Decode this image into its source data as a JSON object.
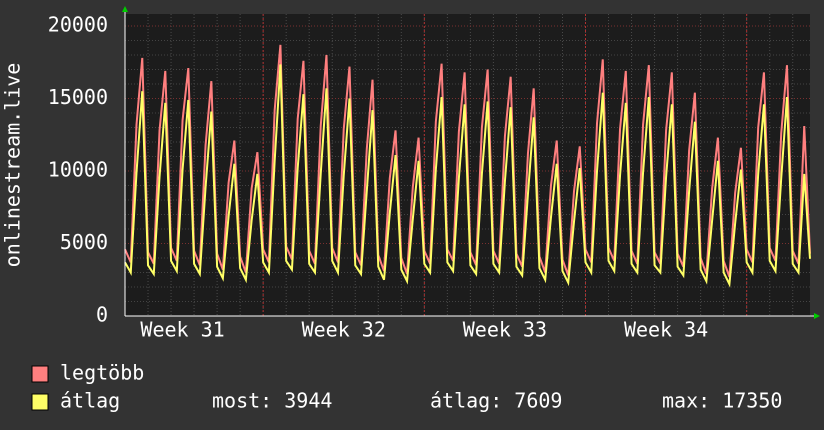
{
  "chart_data": {
    "type": "line",
    "y_label": "onlinestream.live",
    "categories": [
      null,
      null,
      null,
      null,
      null,
      null,
      null,
      null,
      null,
      null,
      "Week 31",
      null,
      null,
      null,
      null,
      null,
      null,
      null,
      null,
      null,
      null,
      null,
      null,
      null,
      null,
      null,
      null,
      null,
      null,
      null,
      null,
      null,
      null,
      null,
      null,
      null,
      null,
      null,
      "Week 32",
      null,
      null,
      null,
      null,
      null,
      null,
      null,
      null,
      null,
      null,
      null,
      null,
      null,
      null,
      null,
      null,
      null,
      null,
      null,
      null,
      null,
      null,
      null,
      null,
      null,
      null,
      null,
      "Week 33",
      null,
      null,
      null,
      null,
      null,
      null,
      null,
      null,
      null,
      null,
      null,
      null,
      null,
      null,
      null,
      null,
      null,
      null,
      null,
      null,
      null,
      null,
      null,
      null,
      null,
      null,
      null,
      "Week 34",
      null,
      null,
      null,
      null,
      null,
      null,
      null,
      null,
      null,
      null,
      null,
      null,
      null,
      null,
      null,
      null,
      null,
      null,
      null,
      null,
      null,
      null,
      null,
      null,
      null
    ],
    "series": [
      {
        "name": "legtöbb",
        "color": "#ff7f7f",
        "values": [
          4600,
          3700,
          13200,
          17800,
          4400,
          3600,
          12800,
          16900,
          4700,
          3800,
          13500,
          17100,
          4500,
          3500,
          11800,
          16200,
          4300,
          3200,
          9200,
          12100,
          4100,
          3000,
          8800,
          11300,
          4600,
          3700,
          14200,
          18700,
          4800,
          3900,
          13600,
          17600,
          4500,
          3600,
          13100,
          18000,
          4700,
          3700,
          12900,
          17200,
          4400,
          3500,
          11500,
          16300,
          4200,
          3100,
          9500,
          12800,
          4000,
          2900,
          8900,
          12300,
          4500,
          3600,
          13400,
          17400,
          4600,
          3800,
          12700,
          16800,
          4400,
          3500,
          13000,
          17000,
          4500,
          3600,
          12400,
          16500,
          4300,
          3400,
          11200,
          15700,
          4100,
          3000,
          9000,
          12100,
          3900,
          2800,
          8600,
          11700,
          4600,
          3700,
          13300,
          17700,
          4700,
          3800,
          12900,
          16900,
          4500,
          3600,
          13200,
          17300,
          4400,
          3600,
          12800,
          16800,
          4300,
          3400,
          11400,
          15400,
          4000,
          2900,
          8800,
          12300,
          3800,
          2700,
          8500,
          11600,
          4600,
          3700,
          13000,
          16800,
          4700,
          3800,
          12600,
          17300,
          4500,
          3600,
          13100,
          4300
        ]
      },
      {
        "name": "átlag",
        "color": "#ffff66",
        "values": [
          3700,
          3000,
          9900,
          15500,
          3500,
          2900,
          9600,
          14700,
          3800,
          3100,
          10100,
          14900,
          3600,
          2900,
          8900,
          14100,
          3400,
          2600,
          6900,
          10500,
          3300,
          2500,
          6600,
          9800,
          3700,
          3000,
          10700,
          17350,
          3800,
          3200,
          10200,
          15300,
          3600,
          3000,
          9800,
          15700,
          3800,
          3000,
          9700,
          15000,
          3500,
          2900,
          8600,
          14200,
          3400,
          2500,
          7100,
          11100,
          3200,
          2400,
          6700,
          10700,
          3600,
          3000,
          10100,
          15100,
          3700,
          3100,
          9500,
          14600,
          3500,
          2900,
          9800,
          14800,
          3600,
          3000,
          9300,
          14400,
          3400,
          2800,
          8400,
          13700,
          3300,
          2500,
          6800,
          10500,
          3100,
          2300,
          6500,
          10200,
          3700,
          3000,
          10000,
          15400,
          3800,
          3100,
          9700,
          14700,
          3600,
          3000,
          9900,
          15100,
          3500,
          3000,
          9600,
          14600,
          3400,
          2800,
          8600,
          13400,
          3200,
          2400,
          6600,
          10700,
          3000,
          2200,
          6400,
          10100,
          3700,
          3000,
          9800,
          14600,
          3800,
          3100,
          9500,
          15100,
          3600,
          3000,
          9800,
          3944
        ]
      }
    ],
    "stats": [
      "most: 3944",
      "átlag: 7609",
      "max: 17350"
    ],
    "ylim": [
      0,
      20000
    ],
    "yticks": [
      0,
      5000,
      10000,
      15000,
      20000
    ],
    "grid": true
  }
}
